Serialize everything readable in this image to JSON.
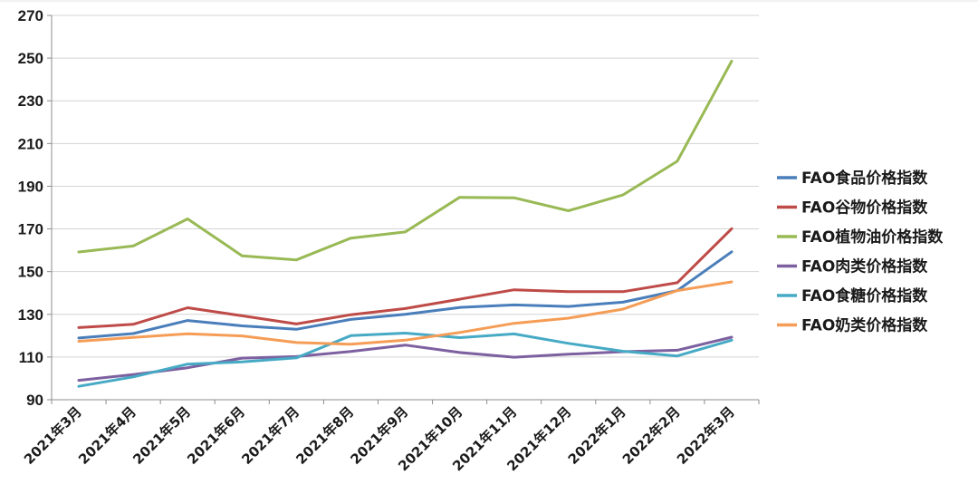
{
  "chart_data": {
    "type": "line",
    "title": "",
    "xlabel": "",
    "ylabel": "",
    "ylim": [
      90,
      270
    ],
    "y_ticks": [
      90,
      110,
      130,
      150,
      170,
      190,
      210,
      230,
      250,
      270
    ],
    "grid": "horizontal",
    "legend_position": "right",
    "categories": [
      "2021年3月",
      "2021年4月",
      "2021年5月",
      "2021年6月",
      "2021年7月",
      "2021年8月",
      "2021年9月",
      "2021年10月",
      "2021年11月",
      "2021年12月",
      "2022年1月",
      "2022年2月",
      "2022年3月"
    ],
    "series": [
      {
        "name": "FAO食品价格指数",
        "color": "#4A7EBB",
        "values": [
          118.9,
          121.0,
          127.1,
          124.6,
          123.0,
          127.6,
          130.0,
          133.2,
          134.4,
          133.7,
          135.7,
          141.1,
          159.3
        ]
      },
      {
        "name": "FAO谷物价格指数",
        "color": "#BE4B48",
        "values": [
          123.8,
          125.3,
          133.1,
          129.3,
          125.5,
          129.8,
          132.7,
          137.1,
          141.5,
          140.6,
          140.6,
          144.8,
          170.1
        ]
      },
      {
        "name": "FAO植物油价格指数",
        "color": "#98B954",
        "values": [
          159.2,
          162.0,
          174.7,
          157.4,
          155.5,
          165.7,
          168.6,
          184.8,
          184.6,
          178.5,
          185.9,
          201.7,
          248.6
        ]
      },
      {
        "name": "FAO肉类价格指数",
        "color": "#7D60A0",
        "values": [
          99.1,
          101.8,
          105.0,
          109.5,
          110.2,
          112.6,
          115.6,
          112.1,
          109.9,
          111.3,
          112.5,
          113.2,
          119.3
        ]
      },
      {
        "name": "FAO食糖价格指数",
        "color": "#46AAC5",
        "values": [
          96.3,
          100.7,
          106.7,
          107.7,
          109.6,
          120.0,
          121.2,
          119.1,
          120.8,
          116.4,
          112.7,
          110.5,
          117.9
        ]
      },
      {
        "name": "FAO奶类价格指数",
        "color": "#F59D56",
        "values": [
          117.4,
          119.2,
          120.9,
          119.9,
          116.8,
          116.0,
          117.9,
          121.5,
          125.8,
          128.2,
          132.4,
          141.1,
          145.2
        ]
      }
    ]
  }
}
